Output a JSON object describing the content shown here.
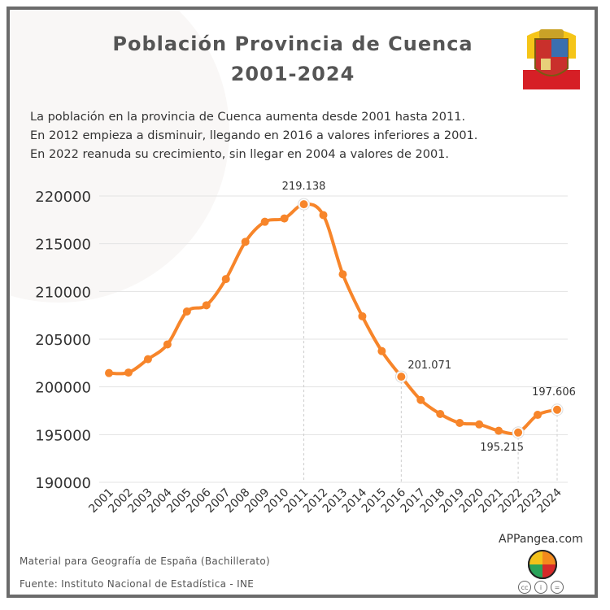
{
  "title_line1": "Población Provincia de Cuenca",
  "title_line2": "2001-2024",
  "description": [
    "La población en la provincia de Cuenca aumenta desde 2001 hasta 2011.",
    "En 2012 empieza a disminuir, llegando en 2016 a valores inferiores a 2001.",
    "En 2022 reanuda su crecimiento, sin llegar en 2004 a valores de 2001."
  ],
  "footer": {
    "material": "Material para Geografía de España (Bachillerato)",
    "source": "Fuente: Instituto Nacional de Estadística - INE",
    "brand": "APPangea.com",
    "license_icons": [
      "cc-icon",
      "by-icon",
      "nd-icon"
    ]
  },
  "colors": {
    "line": "#f7852a",
    "grid": "#e3e3e3",
    "text": "#333333"
  },
  "chart_data": {
    "type": "line",
    "title": "Población Provincia de Cuenca 2001-2024",
    "xlabel": "",
    "ylabel": "",
    "ylim": [
      190000,
      220000
    ],
    "yticks": [
      "220000",
      "215000",
      "210000",
      "205000",
      "200000",
      "195000",
      "190000"
    ],
    "grid": true,
    "categories": [
      "2001",
      "2002",
      "2003",
      "2004",
      "2005",
      "2006",
      "2007",
      "2008",
      "2009",
      "2010",
      "2011",
      "2012",
      "2013",
      "2014",
      "2015",
      "2016",
      "2017",
      "2018",
      "2019",
      "2020",
      "2021",
      "2022",
      "2023",
      "2024"
    ],
    "values": [
      201450,
      201500,
      202900,
      204450,
      207900,
      208550,
      211300,
      215200,
      217300,
      217650,
      219138,
      218000,
      211800,
      207400,
      203750,
      201071,
      198630,
      197160,
      196220,
      196070,
      195400,
      195215,
      197070,
      197606
    ],
    "annotations": [
      {
        "year": "2011",
        "label": "219.138"
      },
      {
        "year": "2016",
        "label": "201.071"
      },
      {
        "year": "2022",
        "label": "195.215"
      },
      {
        "year": "2024",
        "label": "197.606"
      }
    ]
  }
}
